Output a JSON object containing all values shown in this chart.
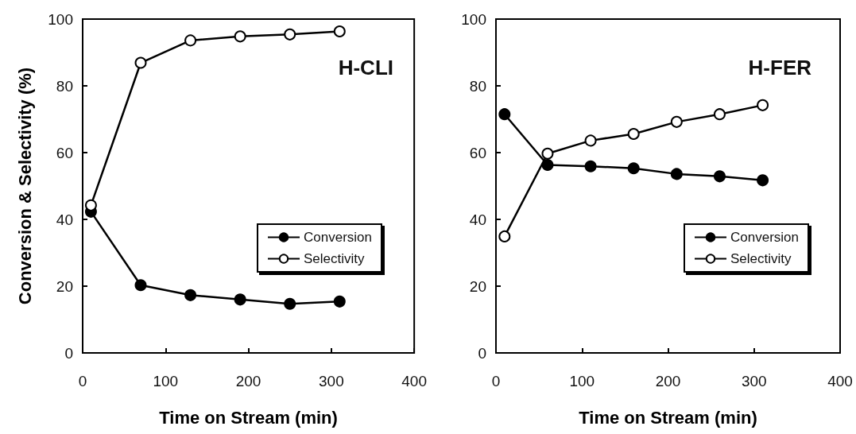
{
  "chart_data": [
    {
      "type": "line",
      "ylabel": "Conversion & Selectivity (%)",
      "xlabel": "Time on Stream (min)",
      "annotations": [
        "H-CLI"
      ],
      "xlim": [
        0,
        400
      ],
      "xticks": [
        0,
        100,
        200,
        300,
        400
      ],
      "ylim": [
        0,
        100
      ],
      "yticks": [
        0,
        20,
        40,
        60,
        80,
        100
      ],
      "legend": "right",
      "marker": "circle",
      "x": [
        10,
        70,
        130,
        190,
        250,
        310
      ],
      "series": [
        {
          "name": "Conversion",
          "color": "#000000",
          "values": [
            42.3,
            20.3,
            17.3,
            16,
            14.7,
            15.4
          ]
        },
        {
          "name": "Selectivity",
          "color": "#000000",
          "values": [
            44.2,
            86.9,
            93.6,
            94.8,
            95.4,
            96.3
          ]
        }
      ]
    },
    {
      "type": "line",
      "xlabel": "Time on Stream (min)",
      "annotations": [
        "H-FER"
      ],
      "xlim": [
        0,
        400
      ],
      "xticks": [
        0,
        100,
        200,
        300,
        400
      ],
      "ylim": [
        0,
        100
      ],
      "yticks": [
        0,
        20,
        40,
        60,
        80,
        100
      ],
      "legend": "right",
      "marker": "circle",
      "x": [
        10,
        60,
        110,
        160,
        210,
        260,
        310
      ],
      "series": [
        {
          "name": "Conversion",
          "color": "#000000",
          "values": [
            71.5,
            56.3,
            55.9,
            55.3,
            53.6,
            52.9,
            51.7
          ]
        },
        {
          "name": "Selectivity",
          "color": "#000000",
          "values": [
            34.9,
            59.7,
            63.6,
            65.6,
            69.2,
            71.5,
            74.2
          ]
        }
      ]
    }
  ]
}
